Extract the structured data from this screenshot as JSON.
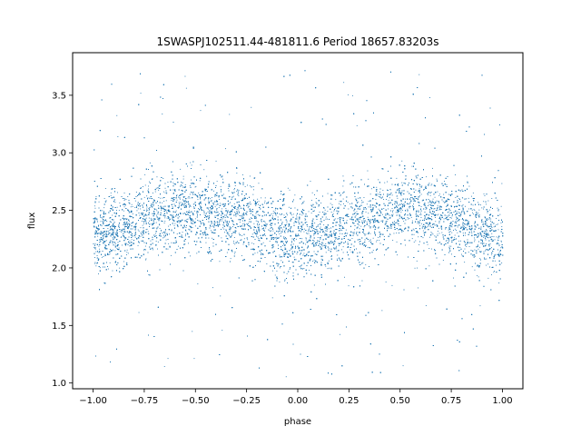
{
  "chart_data": {
    "type": "scatter",
    "title": "1SWASPJ102511.44-481811.6 Period 18657.83203s",
    "xlabel": "phase",
    "ylabel": "flux",
    "xlim": [
      -1.1,
      1.1
    ],
    "ylim": [
      0.95,
      3.87
    ],
    "xticks": [
      -1.0,
      -0.75,
      -0.5,
      -0.25,
      0.0,
      0.25,
      0.5,
      0.75,
      1.0
    ],
    "xtick_labels": [
      "−1.00",
      "−0.75",
      "−0.50",
      "−0.25",
      "0.00",
      "0.25",
      "0.50",
      "0.75",
      "1.00"
    ],
    "yticks": [
      1.0,
      1.5,
      2.0,
      2.5,
      3.0,
      3.5
    ],
    "ytick_labels": [
      "1.0",
      "1.5",
      "2.0",
      "2.5",
      "3.0",
      "3.5"
    ],
    "grid": false,
    "marker_color": "#1f77b4",
    "series": [
      {
        "phase_range": [
          -1.0,
          1.0
        ],
        "approx_points": 16000,
        "profile_phase": [
          -1.0,
          -0.9,
          -0.8,
          -0.7,
          -0.6,
          -0.5,
          -0.4,
          -0.3,
          -0.2,
          -0.1,
          0.0,
          0.1,
          0.2,
          0.3,
          0.4,
          0.5,
          0.6,
          0.7,
          0.8,
          0.9,
          1.0
        ],
        "profile_mean_flux": [
          2.28,
          2.32,
          2.4,
          2.46,
          2.5,
          2.48,
          2.47,
          2.45,
          2.38,
          2.3,
          2.25,
          2.27,
          2.35,
          2.42,
          2.48,
          2.5,
          2.48,
          2.45,
          2.38,
          2.3,
          2.26
        ],
        "scatter_std": 0.17,
        "outlier_range": [
          1.05,
          3.75
        ]
      }
    ]
  }
}
